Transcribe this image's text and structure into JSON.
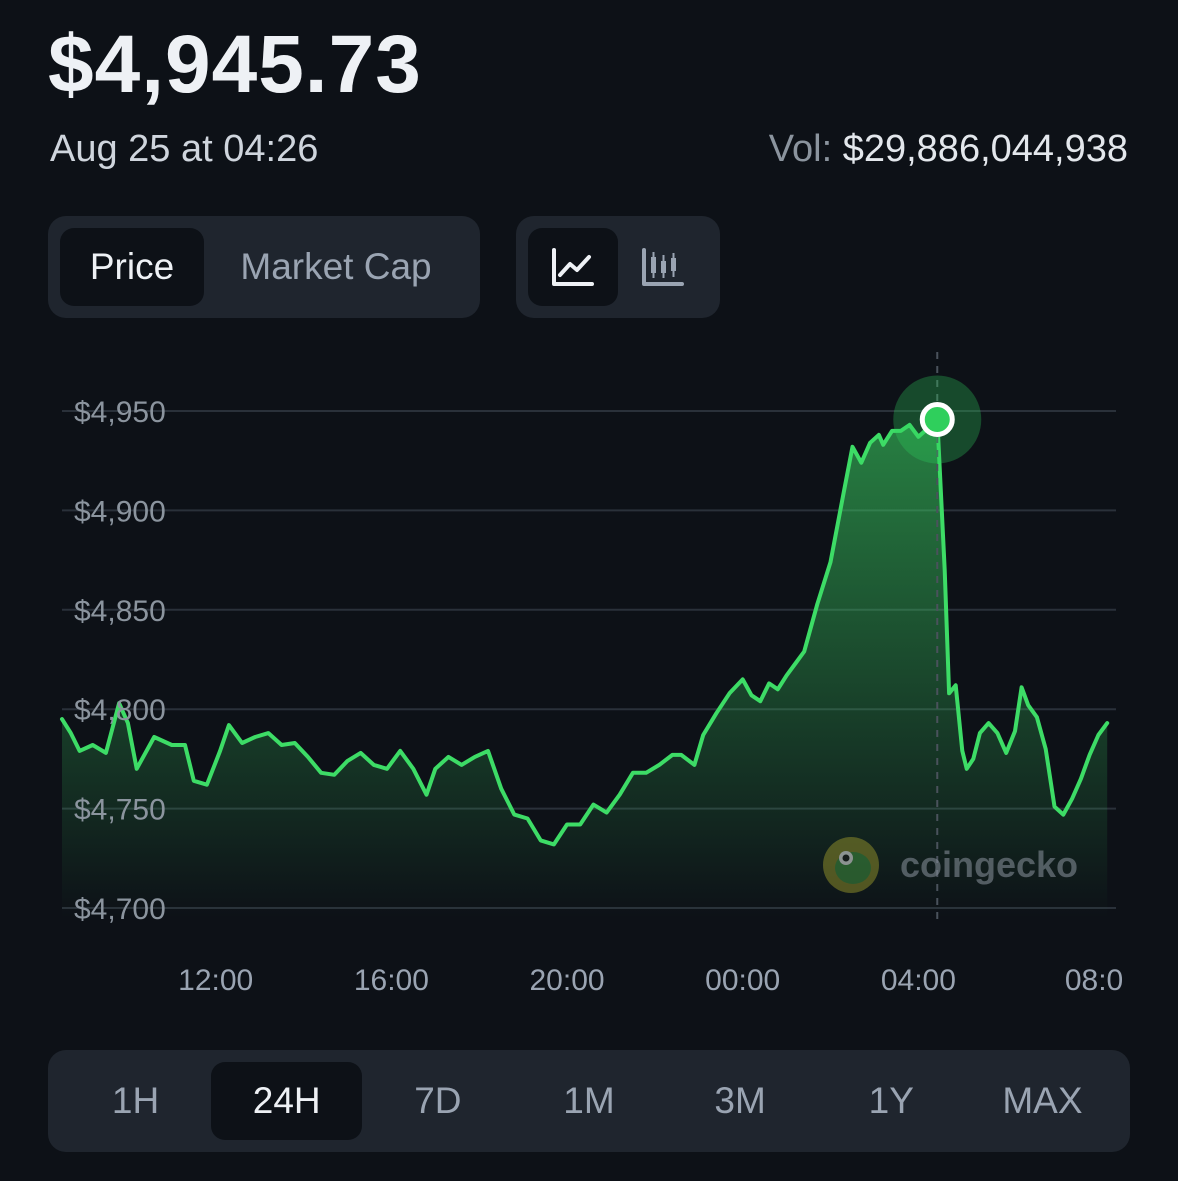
{
  "header": {
    "price": "$4,945.73",
    "timestamp": "Aug 25 at 04:26",
    "volume_label": "Vol:",
    "volume_value": "$29,886,044,938"
  },
  "metric_toggle": {
    "options": [
      {
        "label": "Price",
        "active": true
      },
      {
        "label": "Market Cap",
        "active": false
      }
    ]
  },
  "chart_type_toggle": {
    "options": [
      {
        "icon": "line-chart-icon",
        "active": true
      },
      {
        "icon": "candlestick-icon",
        "active": false
      }
    ]
  },
  "watermark": {
    "text": "coingecko",
    "icon": "coingecko-gecko-icon"
  },
  "colors": {
    "background": "#0d1117",
    "line": "#3ddc66",
    "marker": "#2fcf5c",
    "grid": "#2a313a",
    "panel": "#1f252e"
  },
  "time_ranges": [
    "1H",
    "24H",
    "7D",
    "1M",
    "3M",
    "1Y",
    "MAX"
  ],
  "active_time_range": "24H",
  "chart_data": {
    "type": "area",
    "title": "",
    "xlabel": "",
    "ylabel": "",
    "y_tick_labels": [
      "$4,950",
      "$4,900",
      "$4,850",
      "$4,800",
      "$4,750",
      "$4,700"
    ],
    "y_ticks": [
      4950,
      4900,
      4850,
      4800,
      4750,
      4700
    ],
    "ylim": [
      4700,
      4950
    ],
    "x_tick_labels": [
      "12:00",
      "16:00",
      "20:00",
      "00:00",
      "04:00",
      "08:0"
    ],
    "x_ticks": [
      12,
      16,
      20,
      24,
      28,
      32
    ],
    "xlim": [
      8.5,
      32.5
    ],
    "grid": true,
    "highlight": {
      "x": 28.43,
      "y": 4945.73
    },
    "series": [
      {
        "x": [
          8.5,
          8.7,
          8.9,
          9.2,
          9.5,
          9.8,
          10.0,
          10.2,
          10.6,
          11.0,
          11.3,
          11.5,
          11.8,
          12.1,
          12.3,
          12.6,
          12.9,
          13.2,
          13.5,
          13.8,
          14.1,
          14.4,
          14.7,
          15.0,
          15.3,
          15.6,
          15.9,
          16.2,
          16.5,
          16.8,
          17.0,
          17.3,
          17.6,
          17.9,
          18.2,
          18.5,
          18.8,
          19.1,
          19.4,
          19.7,
          20.0,
          20.3,
          20.6,
          20.9,
          21.2,
          21.5,
          21.8,
          22.1,
          22.4,
          22.6,
          22.9,
          23.1,
          23.4,
          23.7,
          24.0,
          24.2,
          24.4,
          24.6,
          24.8,
          25.0,
          25.2,
          25.4,
          25.7,
          26.0,
          26.3,
          26.5,
          26.7,
          26.9,
          27.0,
          27.1,
          27.2,
          27.4,
          27.6,
          27.8,
          28.0,
          28.2,
          28.35,
          28.43,
          28.6,
          28.7,
          28.85,
          29.0,
          29.1,
          29.25,
          29.4,
          29.6,
          29.8,
          30.0,
          30.2,
          30.35,
          30.5,
          30.7,
          30.9,
          31.1,
          31.3,
          31.5,
          31.7,
          31.9,
          32.1,
          32.3
        ],
        "y": [
          4795,
          4788,
          4779,
          4782,
          4778,
          4803,
          4793,
          4770,
          4786,
          4782,
          4782,
          4764,
          4762,
          4779,
          4792,
          4783,
          4786,
          4788,
          4782,
          4783,
          4776,
          4768,
          4767,
          4774,
          4778,
          4772,
          4770,
          4779,
          4770,
          4757,
          4770,
          4776,
          4772,
          4776,
          4779,
          4760,
          4747,
          4745,
          4734,
          4732,
          4742,
          4742,
          4752,
          4748,
          4757,
          4768,
          4768,
          4772,
          4777,
          4777,
          4772,
          4787,
          4798,
          4808,
          4815,
          4807,
          4804,
          4813,
          4810,
          4817,
          4823,
          4829,
          4853,
          4874,
          4909,
          4932,
          4924,
          4934,
          4936,
          4938,
          4933,
          4940,
          4940,
          4943,
          4937,
          4941,
          4944,
          4946,
          4870,
          4808,
          4812,
          4779,
          4770,
          4775,
          4788,
          4793,
          4788,
          4778,
          4789,
          4811,
          4802,
          4796,
          4780,
          4751,
          4747,
          4755,
          4765,
          4777,
          4787,
          4793
        ]
      }
    ]
  }
}
